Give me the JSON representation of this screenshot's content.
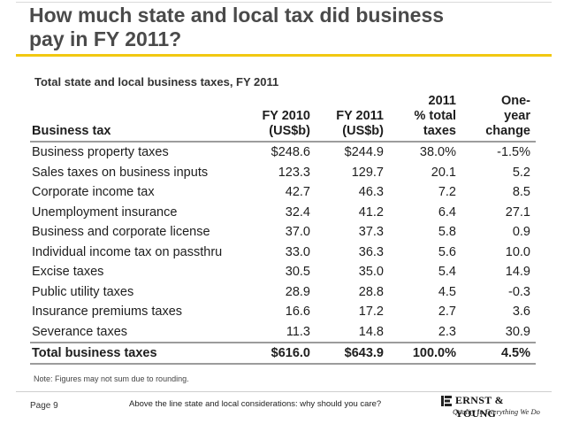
{
  "slide": {
    "title_line1": "How much state and local tax did business",
    "title_line2": "pay in FY 2011?",
    "subtitle": "Total state and local business taxes, FY 2011",
    "note": "Note: Figures may not sum due to rounding.",
    "page": "Page 9",
    "footer": "Above the line state and local considerations: why should you care?",
    "logo": {
      "name": "ERNST & YOUNG",
      "tagline": "Quality In Everything We Do"
    },
    "colors": {
      "accent": "#f2c811",
      "title": "#4a4a4a",
      "rule": "#9c9c9c"
    }
  },
  "table": {
    "headers": {
      "label": "Business tax",
      "fy2010_l1": "FY 2010",
      "fy2010_l2": "(US$b)",
      "fy2011_l1": "FY 2011",
      "fy2011_l2": "(US$b)",
      "pct_l1": "2011",
      "pct_l2": "% total",
      "pct_l3": "taxes",
      "chg_l1": "One-",
      "chg_l2": "year",
      "chg_l3": "change"
    },
    "rows": [
      {
        "label": "Business property taxes",
        "fy2010": "$248.6",
        "fy2011": "$244.9",
        "pct": "38.0%",
        "change": "-1.5%"
      },
      {
        "label": "Sales taxes on business inputs",
        "fy2010": "123.3",
        "fy2011": "129.7",
        "pct": "20.1",
        "change": "5.2"
      },
      {
        "label": "Corporate income tax",
        "fy2010": "42.7",
        "fy2011": "46.3",
        "pct": "7.2",
        "change": "8.5"
      },
      {
        "label": "Unemployment insurance",
        "fy2010": "32.4",
        "fy2011": "41.2",
        "pct": "6.4",
        "change": "27.1"
      },
      {
        "label": "Business and corporate license",
        "fy2010": "37.0",
        "fy2011": "37.3",
        "pct": "5.8",
        "change": "0.9"
      },
      {
        "label": "Individual income tax on passthru",
        "fy2010": "33.0",
        "fy2011": "36.3",
        "pct": "5.6",
        "change": "10.0"
      },
      {
        "label": "Excise taxes",
        "fy2010": "30.5",
        "fy2011": "35.0",
        "pct": "5.4",
        "change": "14.9"
      },
      {
        "label": "Public utility taxes",
        "fy2010": "28.9",
        "fy2011": "28.8",
        "pct": "4.5",
        "change": "-0.3"
      },
      {
        "label": "Insurance premiums taxes",
        "fy2010": "16.6",
        "fy2011": "17.2",
        "pct": "2.7",
        "change": "3.6"
      },
      {
        "label": "Severance taxes",
        "fy2010": "11.3",
        "fy2011": "14.8",
        "pct": "2.3",
        "change": "30.9"
      }
    ],
    "total": {
      "label": "Total business taxes",
      "fy2010": "$616.0",
      "fy2011": "$643.9",
      "pct": "100.0%",
      "change": "4.5%"
    }
  }
}
